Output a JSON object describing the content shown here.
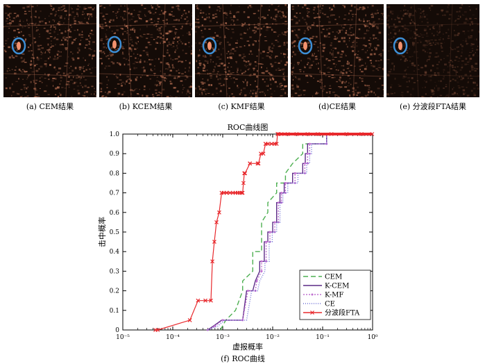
{
  "thumbnails": [
    {
      "id": "a",
      "caption": "(a) CEM结果"
    },
    {
      "id": "b",
      "caption": "(b) KCEM结果"
    },
    {
      "id": "c",
      "caption": "(c) KMF结果"
    },
    {
      "id": "d",
      "caption": "(d)CE结果"
    },
    {
      "id": "e",
      "caption": "(e) 分波段FTA结果"
    }
  ],
  "colors": {
    "thumb_background": "#140b07",
    "thumb_speckle": "#c8795a",
    "target_circle": "#3d8fd6"
  },
  "figure_caption": "(f) ROC曲线",
  "chart_data": {
    "type": "line",
    "title": "ROC曲线图",
    "xlabel": "虚报概率",
    "ylabel": "击中概率",
    "x_scale": "log",
    "xlim": [
      1e-05,
      1
    ],
    "ylim": [
      0,
      1
    ],
    "x_tick_labels": [
      "10⁻⁵",
      "10⁻⁴",
      "10⁻³",
      "10⁻²",
      "10⁻¹",
      "10⁰"
    ],
    "x_ticks": [
      1e-05,
      0.0001,
      0.001,
      0.01,
      0.1,
      1
    ],
    "y_ticks": [
      0,
      0.1,
      0.2,
      0.3,
      0.4,
      0.5,
      0.6,
      0.7,
      0.8,
      0.9,
      1.0
    ],
    "y_tick_labels": [
      "0",
      "0.1",
      "0.2",
      "0.3",
      "0.4",
      "0.5",
      "0.6",
      "0.7",
      "0.8",
      "0.9",
      "1.0"
    ],
    "legend_position": "bottom-right",
    "series": [
      {
        "name": "CEM",
        "color": "#4caf50",
        "dash": "7,4",
        "marker": "none",
        "x": [
          0.0009,
          0.00115,
          0.0018,
          0.0025,
          0.0025,
          0.004,
          0.004,
          0.006,
          0.006,
          0.008,
          0.008,
          0.012,
          0.012,
          0.018,
          0.018,
          0.025,
          0.025,
          0.04,
          0.04,
          0.12,
          0.12
        ],
        "y": [
          0,
          0.05,
          0.1,
          0.2,
          0.25,
          0.3,
          0.4,
          0.4,
          0.55,
          0.6,
          0.65,
          0.7,
          0.75,
          0.75,
          0.8,
          0.85,
          0.85,
          0.9,
          0.95,
          0.95,
          1.0
        ]
      },
      {
        "name": "K-CEM",
        "color": "#5b2a86",
        "dash": "",
        "marker": "none",
        "x": [
          0.0005,
          0.00065,
          0.00095,
          0.0025,
          0.003,
          0.004,
          0.0045,
          0.0055,
          0.0055,
          0.0068,
          0.0068,
          0.008,
          0.008,
          0.01,
          0.01,
          0.012,
          0.012,
          0.014,
          0.014,
          0.017,
          0.017,
          0.025,
          0.025,
          0.04,
          0.04,
          0.045,
          0.045,
          0.05,
          0.05,
          0.12,
          0.12
        ],
        "y": [
          0,
          0.02,
          0.05,
          0.05,
          0.2,
          0.2,
          0.25,
          0.3,
          0.35,
          0.35,
          0.45,
          0.45,
          0.5,
          0.5,
          0.55,
          0.55,
          0.65,
          0.65,
          0.7,
          0.7,
          0.75,
          0.75,
          0.8,
          0.8,
          0.85,
          0.85,
          0.9,
          0.9,
          0.95,
          0.95,
          1.0
        ]
      },
      {
        "name": "K-MF",
        "color": "#c070d0",
        "dash": "2,2",
        "marker": "dot",
        "x": [
          0.0005,
          0.0007,
          0.001,
          0.0025,
          0.0032,
          0.0045,
          0.0048,
          0.006,
          0.006,
          0.0074,
          0.0074,
          0.0088,
          0.0088,
          0.011,
          0.011,
          0.013,
          0.013,
          0.015,
          0.015,
          0.018,
          0.018,
          0.028,
          0.028,
          0.044,
          0.044,
          0.05,
          0.05,
          0.055,
          0.055,
          0.12,
          0.12
        ],
        "y": [
          0,
          0.02,
          0.05,
          0.05,
          0.2,
          0.2,
          0.25,
          0.3,
          0.35,
          0.35,
          0.45,
          0.45,
          0.5,
          0.5,
          0.55,
          0.55,
          0.65,
          0.65,
          0.7,
          0.7,
          0.75,
          0.75,
          0.8,
          0.8,
          0.85,
          0.85,
          0.9,
          0.9,
          0.95,
          0.95,
          1.0
        ]
      },
      {
        "name": "CE",
        "color": "#6b6fd6",
        "dash": "1,2",
        "marker": "none",
        "x": [
          0.0005,
          0.0008,
          0.0011,
          0.003,
          0.0038,
          0.005,
          0.0055,
          0.007,
          0.007,
          0.0085,
          0.0085,
          0.0098,
          0.0098,
          0.012,
          0.012,
          0.014,
          0.014,
          0.016,
          0.016,
          0.02,
          0.02,
          0.032,
          0.032,
          0.048,
          0.048,
          0.055,
          0.055,
          0.06,
          0.06,
          0.12,
          0.12
        ],
        "y": [
          0,
          0.02,
          0.05,
          0.05,
          0.2,
          0.2,
          0.25,
          0.3,
          0.35,
          0.35,
          0.45,
          0.45,
          0.5,
          0.5,
          0.55,
          0.55,
          0.65,
          0.65,
          0.7,
          0.7,
          0.75,
          0.75,
          0.8,
          0.8,
          0.85,
          0.85,
          0.9,
          0.9,
          0.95,
          0.95,
          1.0
        ]
      },
      {
        "name": "分波段FTA",
        "color": "#e8282c",
        "dash": "",
        "marker": "x",
        "x": [
          4.5e-05,
          5e-05,
          0.00022,
          0.00032,
          0.00045,
          0.00058,
          0.00062,
          0.00068,
          0.00075,
          0.00085,
          0.00095,
          0.00105,
          0.0012,
          0.0012,
          0.0014,
          0.0016,
          0.0018,
          0.002,
          0.0022,
          0.0024,
          0.0025,
          0.0026,
          0.0027,
          0.0028,
          0.0035,
          0.0035,
          0.005,
          0.0052,
          0.0058,
          0.0065,
          0.0072,
          0.0072,
          0.008,
          0.0095,
          0.011,
          0.012,
          0.0125,
          0.013,
          0.015,
          0.02,
          0.03,
          0.05,
          0.08,
          0.15,
          0.3,
          0.6,
          0.98
        ],
        "y": [
          0,
          0,
          0.05,
          0.15,
          0.15,
          0.15,
          0.35,
          0.45,
          0.55,
          0.6,
          0.7,
          0.7,
          0.7,
          0.7,
          0.7,
          0.7,
          0.7,
          0.7,
          0.7,
          0.7,
          0.7,
          0.75,
          0.8,
          0.8,
          0.85,
          0.85,
          0.85,
          0.85,
          0.9,
          0.9,
          0.95,
          0.95,
          0.95,
          0.95,
          0.95,
          0.95,
          1.0,
          1.0,
          1.0,
          1.0,
          1.0,
          1.0,
          1.0,
          1.0,
          1.0,
          1.0,
          1.0
        ]
      }
    ]
  }
}
